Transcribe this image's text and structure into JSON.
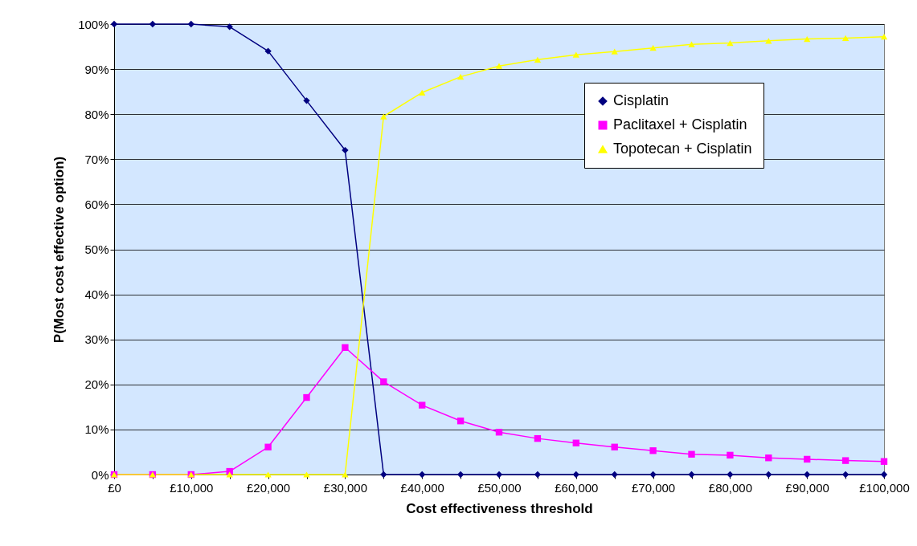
{
  "chart_data": {
    "type": "line",
    "xlabel": "Cost effectiveness threshold",
    "ylabel": "P(Most cost effective option)",
    "x": [
      0,
      5000,
      10000,
      15000,
      20000,
      25000,
      30000,
      35000,
      40000,
      45000,
      50000,
      55000,
      60000,
      65000,
      70000,
      75000,
      80000,
      85000,
      90000,
      95000,
      100000
    ],
    "series": [
      {
        "name": "Cisplatin",
        "color": "#000080",
        "marker": "diamond",
        "values": [
          100,
          100,
          100,
          99.4,
          94,
          83,
          72,
          0,
          0,
          0,
          0,
          0,
          0,
          0,
          0,
          0,
          0,
          0,
          0,
          0,
          0
        ]
      },
      {
        "name": "Paclitaxel + Cisplatin",
        "color": "#ff00ff",
        "marker": "square",
        "values": [
          0,
          0,
          0,
          0.7,
          6.1,
          17.1,
          28.2,
          20.6,
          15.4,
          11.9,
          9.4,
          8.0,
          7.0,
          6.1,
          5.3,
          4.5,
          4.3,
          3.7,
          3.4,
          3.1,
          2.9
        ]
      },
      {
        "name": "Topotecan + Cisplatin",
        "color": "#ffff00",
        "marker": "triangle",
        "values": [
          0,
          0,
          0,
          0,
          0,
          0,
          0,
          79.5,
          84.8,
          88.3,
          90.7,
          92.1,
          93.2,
          93.9,
          94.7,
          95.5,
          95.8,
          96.3,
          96.7,
          96.9,
          97.2
        ]
      }
    ],
    "xlim": [
      0,
      100000
    ],
    "xticks": [
      {
        "value": 0,
        "label": "£0"
      },
      {
        "value": 5000,
        "label": null
      },
      {
        "value": 10000,
        "label": "£10,000"
      },
      {
        "value": 15000,
        "label": null
      },
      {
        "value": 20000,
        "label": "£20,000"
      },
      {
        "value": 25000,
        "label": null
      },
      {
        "value": 30000,
        "label": "£30,000"
      },
      {
        "value": 35000,
        "label": null
      },
      {
        "value": 40000,
        "label": "£40,000"
      },
      {
        "value": 45000,
        "label": null
      },
      {
        "value": 50000,
        "label": "£50,000"
      },
      {
        "value": 55000,
        "label": null
      },
      {
        "value": 60000,
        "label": "£60,000"
      },
      {
        "value": 65000,
        "label": null
      },
      {
        "value": 70000,
        "label": "£70,000"
      },
      {
        "value": 75000,
        "label": null
      },
      {
        "value": 80000,
        "label": "£80,000"
      },
      {
        "value": 85000,
        "label": null
      },
      {
        "value": 90000,
        "label": "£90,000"
      },
      {
        "value": 95000,
        "label": null
      },
      {
        "value": 100000,
        "label": "£100,000"
      }
    ],
    "ylim": [
      0,
      100
    ],
    "yticks": [
      {
        "value": 0,
        "label": "0%"
      },
      {
        "value": 10,
        "label": "10%"
      },
      {
        "value": 20,
        "label": "20%"
      },
      {
        "value": 30,
        "label": "30%"
      },
      {
        "value": 40,
        "label": "40%"
      },
      {
        "value": 50,
        "label": "50%"
      },
      {
        "value": 60,
        "label": "60%"
      },
      {
        "value": 70,
        "label": "70%"
      },
      {
        "value": 80,
        "label": "80%"
      },
      {
        "value": 90,
        "label": "90%"
      },
      {
        "value": 100,
        "label": "100%"
      }
    ],
    "grid": "y",
    "legend": "top right"
  }
}
